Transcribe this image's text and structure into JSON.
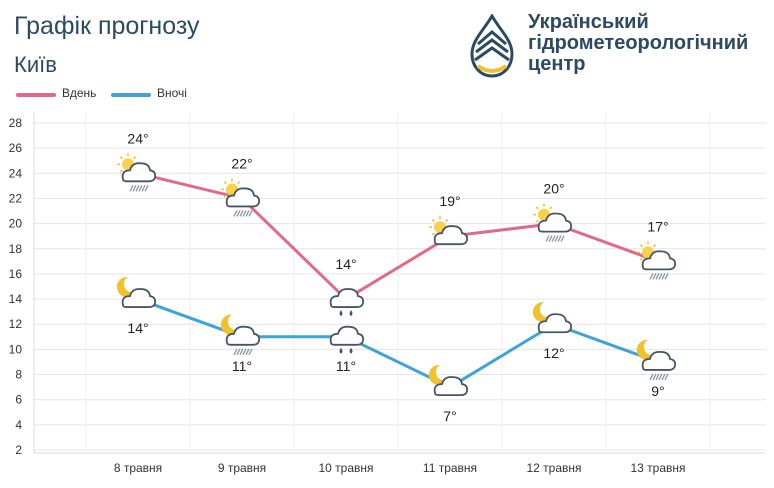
{
  "header": {
    "title": "Графік прогнозу",
    "subtitle": "Київ",
    "org_lines": [
      "Український",
      "гідрометеорологічний",
      "центр"
    ]
  },
  "legend": [
    {
      "label": "Вдень",
      "color": "#e06a87"
    },
    {
      "label": "Вночі",
      "color": "#3ea4d7"
    }
  ],
  "chart_data": {
    "type": "line",
    "categories": [
      "8 травня",
      "9 травня",
      "10 травня",
      "11 травня",
      "12 травня",
      "13 травня"
    ],
    "series": [
      {
        "name": "Вдень",
        "color": "#e06a87",
        "values": [
          24,
          22,
          14,
          19,
          20,
          17
        ],
        "labels": [
          "24°",
          "22°",
          "14°",
          "19°",
          "20°",
          "17°"
        ],
        "icons": [
          "sun-cloud-rain-icon",
          "sun-cloud-rain-icon",
          "cloud-drops-icon",
          "sun-cloud-icon",
          "sun-cloud-rain-icon",
          "sun-cloud-rain-icon"
        ]
      },
      {
        "name": "Вночі",
        "color": "#3ea4d7",
        "values": [
          14,
          11,
          11,
          7,
          12,
          9
        ],
        "labels": [
          "14°",
          "11°",
          "11°",
          "7°",
          "12°",
          "9°"
        ],
        "icons": [
          "moon-cloud-icon",
          "moon-cloud-rain-icon",
          "cloud-drops-icon",
          "moon-cloud-icon",
          "moon-cloud-icon",
          "moon-cloud-rain-icon"
        ]
      }
    ],
    "yticks": [
      2,
      4,
      6,
      8,
      10,
      12,
      14,
      16,
      18,
      20,
      22,
      24,
      26,
      28
    ],
    "ylim": [
      2,
      28
    ],
    "grid": true
  }
}
